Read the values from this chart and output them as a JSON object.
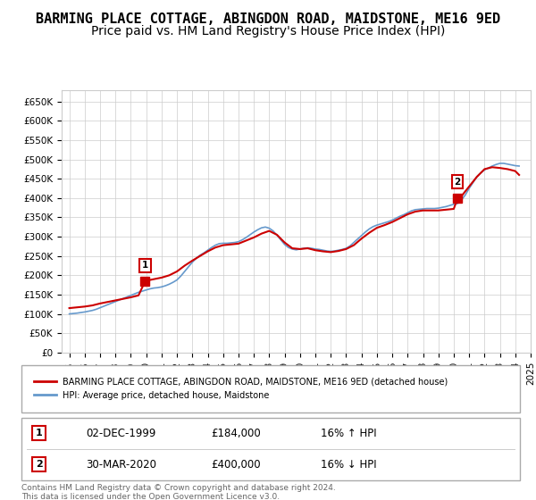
{
  "title": "BARMING PLACE COTTAGE, ABINGDON ROAD, MAIDSTONE, ME16 9ED",
  "subtitle": "Price paid vs. HM Land Registry's House Price Index (HPI)",
  "title_fontsize": 11,
  "subtitle_fontsize": 10,
  "ylabel_ticks": [
    "£0",
    "£50K",
    "£100K",
    "£150K",
    "£200K",
    "£250K",
    "£300K",
    "£350K",
    "£400K",
    "£450K",
    "£500K",
    "£550K",
    "£600K",
    "£650K"
  ],
  "ytick_values": [
    0,
    50000,
    100000,
    150000,
    200000,
    250000,
    300000,
    350000,
    400000,
    450000,
    500000,
    550000,
    600000,
    650000
  ],
  "ylim": [
    0,
    680000
  ],
  "background_color": "#ffffff",
  "plot_bg_color": "#ffffff",
  "grid_color": "#cccccc",
  "red_color": "#cc0000",
  "blue_color": "#6699cc",
  "legend_label_red": "BARMING PLACE COTTAGE, ABINGDON ROAD, MAIDSTONE, ME16 9ED (detached house)",
  "legend_label_blue": "HPI: Average price, detached house, Maidstone",
  "annotation1_date": "02-DEC-1999",
  "annotation1_price": "£184,000",
  "annotation1_hpi": "16% ↑ HPI",
  "annotation2_date": "30-MAR-2020",
  "annotation2_price": "£400,000",
  "annotation2_hpi": "16% ↓ HPI",
  "footer": "Contains HM Land Registry data © Crown copyright and database right 2024.\nThis data is licensed under the Open Government Licence v3.0.",
  "hpi_years": [
    1995.0,
    1995.25,
    1995.5,
    1995.75,
    1996.0,
    1996.25,
    1996.5,
    1996.75,
    1997.0,
    1997.25,
    1997.5,
    1997.75,
    1998.0,
    1998.25,
    1998.5,
    1998.75,
    1999.0,
    1999.25,
    1999.5,
    1999.75,
    2000.0,
    2000.25,
    2000.5,
    2000.75,
    2001.0,
    2001.25,
    2001.5,
    2001.75,
    2002.0,
    2002.25,
    2002.5,
    2002.75,
    2003.0,
    2003.25,
    2003.5,
    2003.75,
    2004.0,
    2004.25,
    2004.5,
    2004.75,
    2005.0,
    2005.25,
    2005.5,
    2005.75,
    2006.0,
    2006.25,
    2006.5,
    2006.75,
    2007.0,
    2007.25,
    2007.5,
    2007.75,
    2008.0,
    2008.25,
    2008.5,
    2008.75,
    2009.0,
    2009.25,
    2009.5,
    2009.75,
    2010.0,
    2010.25,
    2010.5,
    2010.75,
    2011.0,
    2011.25,
    2011.5,
    2011.75,
    2012.0,
    2012.25,
    2012.5,
    2012.75,
    2013.0,
    2013.25,
    2013.5,
    2013.75,
    2014.0,
    2014.25,
    2014.5,
    2014.75,
    2015.0,
    2015.25,
    2015.5,
    2015.75,
    2016.0,
    2016.25,
    2016.5,
    2016.75,
    2017.0,
    2017.25,
    2017.5,
    2017.75,
    2018.0,
    2018.25,
    2018.5,
    2018.75,
    2019.0,
    2019.25,
    2019.5,
    2019.75,
    2020.0,
    2020.25,
    2020.5,
    2020.75,
    2021.0,
    2021.25,
    2021.5,
    2021.75,
    2022.0,
    2022.25,
    2022.5,
    2022.75,
    2023.0,
    2023.25,
    2023.5,
    2023.75,
    2024.0,
    2024.25
  ],
  "hpi_values": [
    100000,
    101000,
    102000,
    103500,
    105000,
    107000,
    109000,
    112000,
    116000,
    120000,
    124000,
    128000,
    132000,
    136000,
    140000,
    144000,
    148000,
    152000,
    156000,
    159000,
    162000,
    165000,
    167000,
    168000,
    170000,
    173000,
    177000,
    182000,
    188000,
    198000,
    210000,
    222000,
    234000,
    244000,
    252000,
    258000,
    265000,
    272000,
    278000,
    282000,
    283000,
    283000,
    284000,
    285000,
    287000,
    292000,
    298000,
    305000,
    312000,
    318000,
    323000,
    325000,
    322000,
    315000,
    304000,
    292000,
    280000,
    272000,
    268000,
    266000,
    268000,
    270000,
    271000,
    270000,
    268000,
    267000,
    265000,
    263000,
    262000,
    263000,
    265000,
    267000,
    270000,
    276000,
    285000,
    294000,
    303000,
    312000,
    320000,
    326000,
    330000,
    333000,
    336000,
    339000,
    343000,
    348000,
    353000,
    357000,
    362000,
    367000,
    370000,
    371000,
    372000,
    373000,
    373000,
    373000,
    374000,
    376000,
    378000,
    381000,
    384000,
    386000,
    395000,
    408000,
    425000,
    440000,
    455000,
    465000,
    473000,
    478000,
    483000,
    487000,
    490000,
    490000,
    488000,
    486000,
    484000,
    483000
  ],
  "price_points": [
    {
      "year": 1999.92,
      "price": 184000
    },
    {
      "year": 2020.25,
      "price": 400000
    }
  ],
  "price_line_years": [
    1995.0,
    1995.5,
    1996.0,
    1996.5,
    1997.0,
    1997.5,
    1998.0,
    1998.5,
    1999.0,
    1999.5,
    1999.92,
    2000.0,
    2000.5,
    2001.0,
    2001.5,
    2002.0,
    2002.5,
    2003.0,
    2003.5,
    2004.0,
    2004.5,
    2005.0,
    2005.5,
    2006.0,
    2006.5,
    2007.0,
    2007.5,
    2008.0,
    2008.5,
    2009.0,
    2009.5,
    2010.0,
    2010.5,
    2011.0,
    2011.5,
    2012.0,
    2012.5,
    2013.0,
    2013.5,
    2014.0,
    2014.5,
    2015.0,
    2015.5,
    2016.0,
    2016.5,
    2017.0,
    2017.5,
    2018.0,
    2018.5,
    2019.0,
    2019.5,
    2020.0,
    2020.25,
    2020.5,
    2021.0,
    2021.5,
    2022.0,
    2022.5,
    2023.0,
    2023.5,
    2024.0,
    2024.25
  ],
  "price_line_values": [
    115000,
    117000,
    119000,
    122000,
    127000,
    131000,
    135000,
    139000,
    143000,
    148000,
    184000,
    186000,
    190000,
    194000,
    200000,
    210000,
    225000,
    238000,
    250000,
    262000,
    272000,
    278000,
    280000,
    282000,
    290000,
    298000,
    308000,
    315000,
    305000,
    285000,
    270000,
    268000,
    270000,
    265000,
    262000,
    260000,
    263000,
    268000,
    278000,
    295000,
    310000,
    323000,
    330000,
    338000,
    348000,
    358000,
    365000,
    368000,
    368000,
    368000,
    370000,
    372000,
    400000,
    405000,
    430000,
    455000,
    475000,
    480000,
    478000,
    475000,
    470000,
    460000
  ],
  "xlim": [
    1994.5,
    2025.0
  ],
  "xtick_years": [
    1995,
    1996,
    1997,
    1998,
    1999,
    2000,
    2001,
    2002,
    2003,
    2004,
    2005,
    2006,
    2007,
    2008,
    2009,
    2010,
    2011,
    2012,
    2013,
    2014,
    2015,
    2016,
    2017,
    2018,
    2019,
    2020,
    2021,
    2022,
    2023,
    2024,
    2025
  ]
}
